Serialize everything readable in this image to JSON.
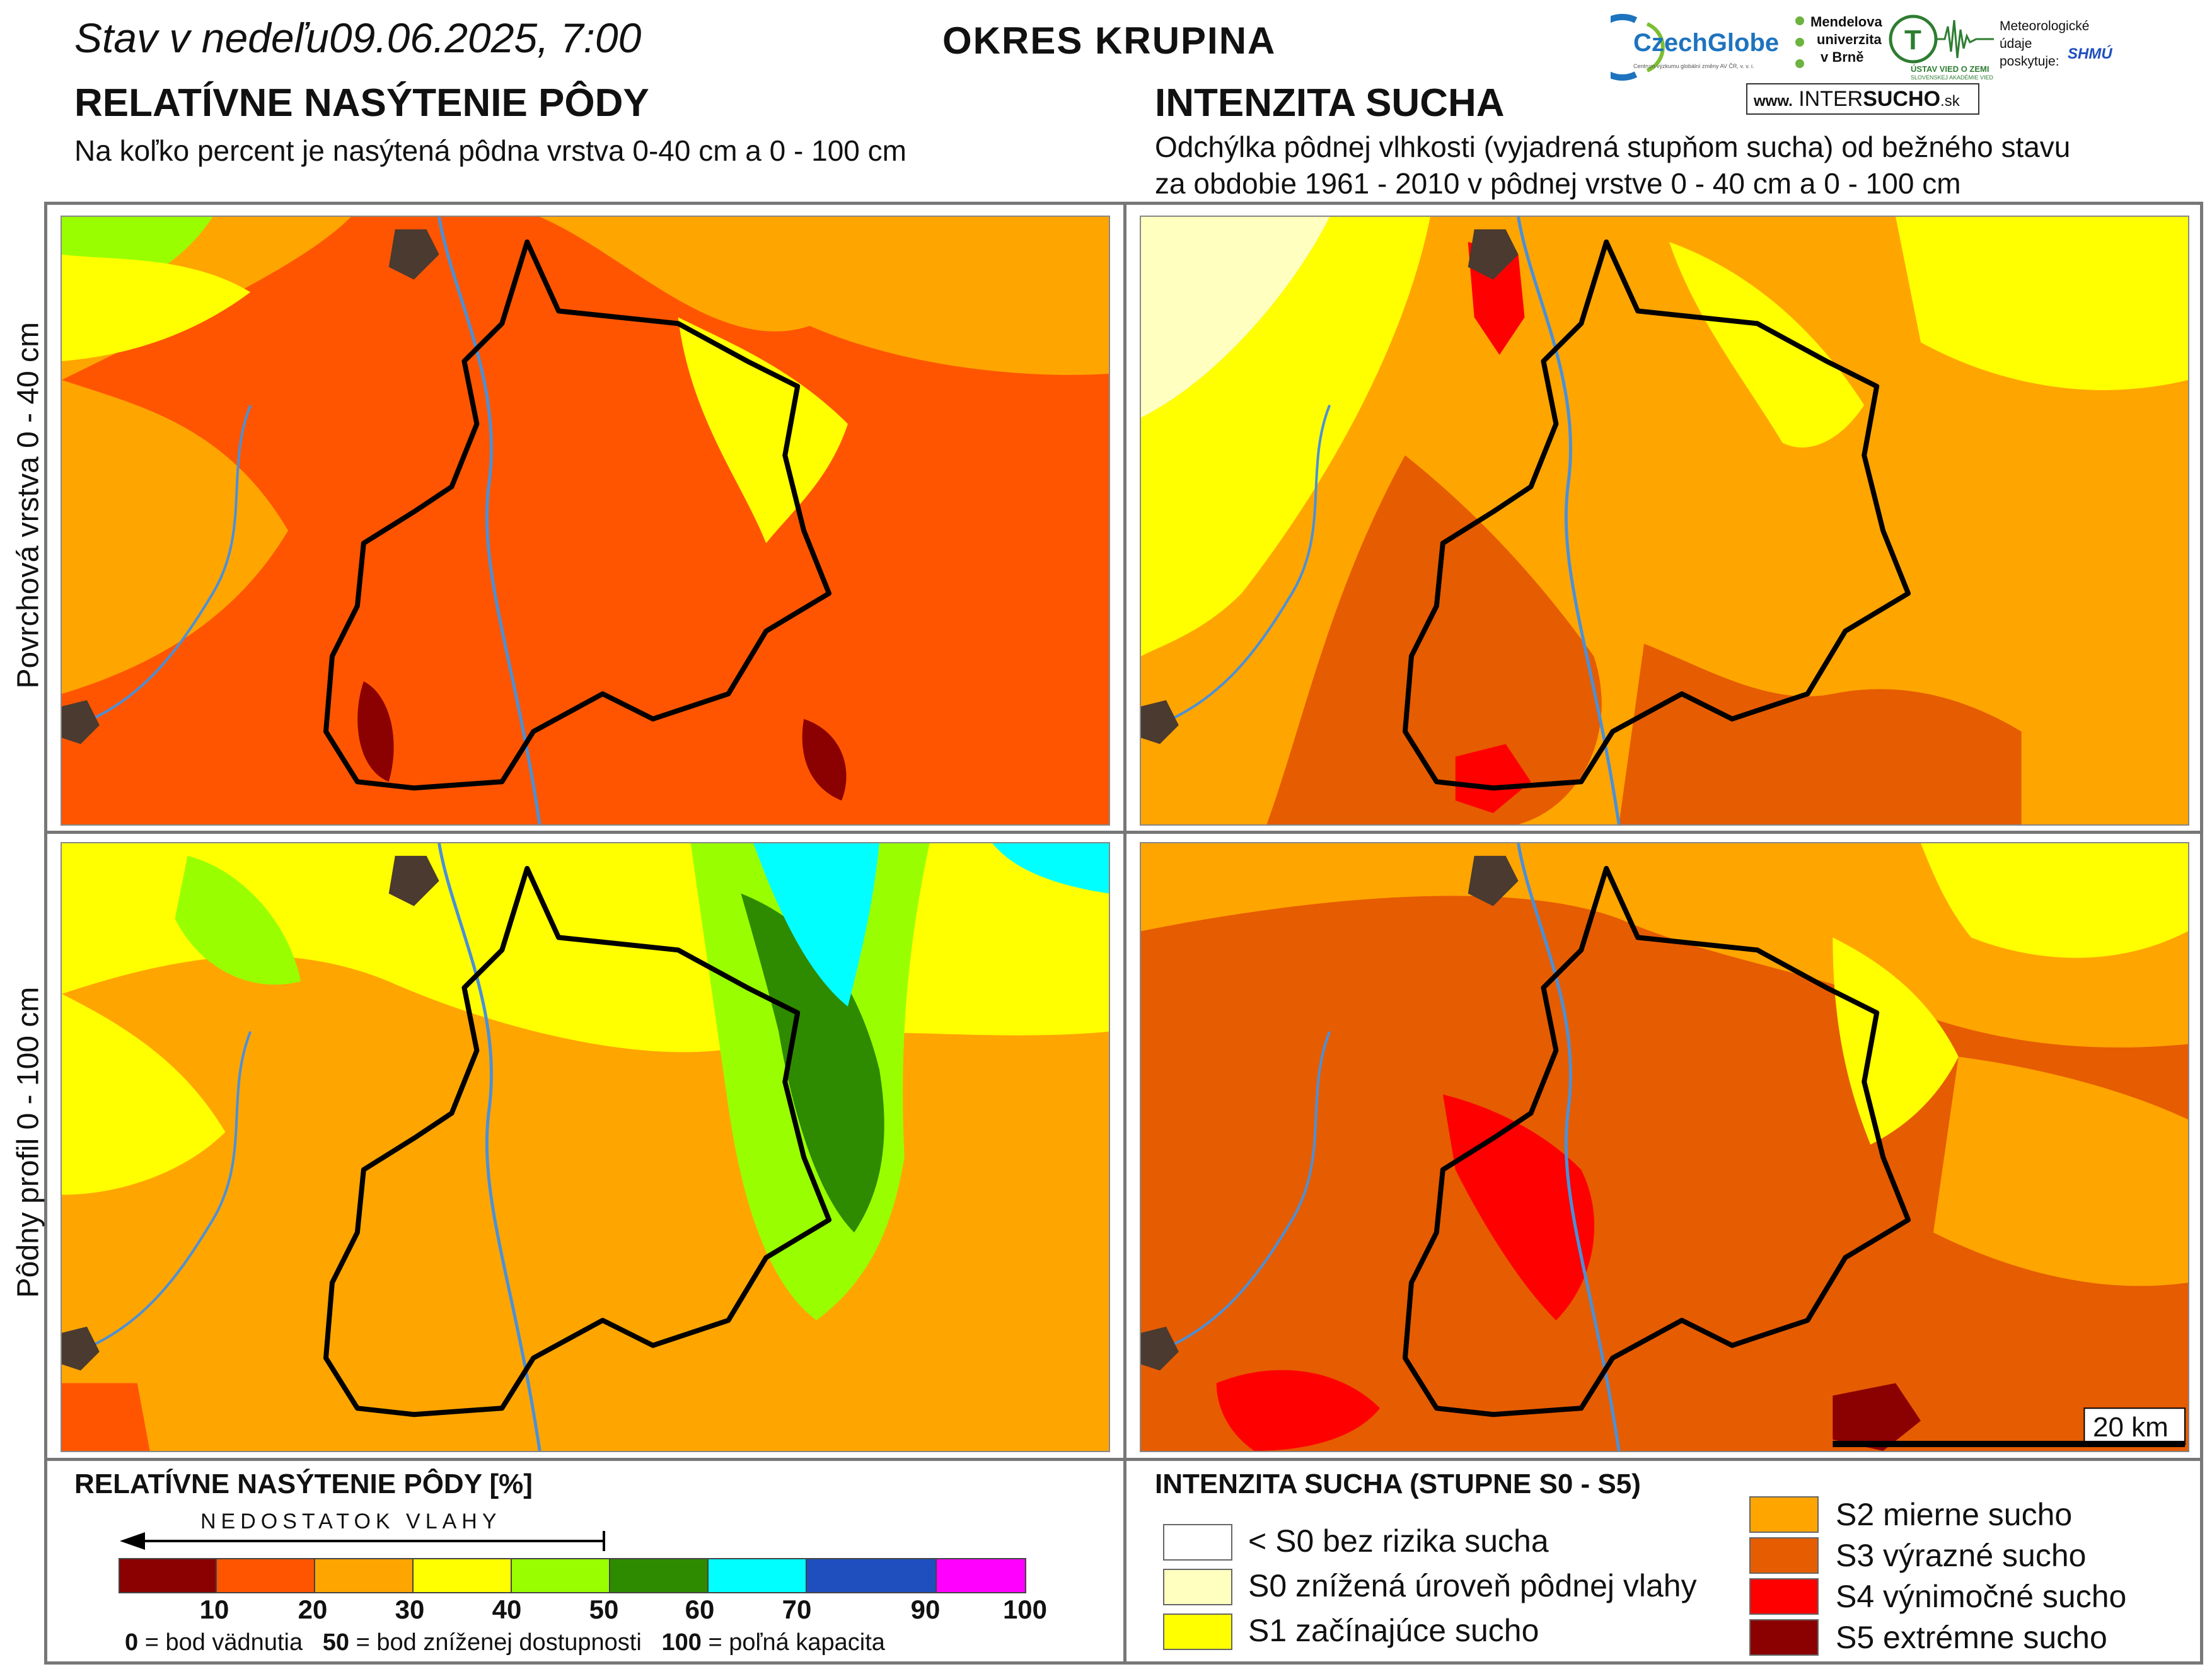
{
  "header": {
    "stav_prefix": "Stav v nedeľu",
    "datetime": "09.06.2025, 7:00",
    "district": "OKRES  KRUPINA"
  },
  "left": {
    "title": "RELATÍVNE NASÝTENIE PÔDY",
    "subtitle": "Na koľko percent je nasýtená pôdna vrstva 0-40 cm a 0 - 100 cm"
  },
  "right": {
    "title": "INTENZITA SUCHA",
    "subtitle_line1": "Odchýlka pôdnej vlhkosti (vyjadrená stupňom sucha) od bežného stavu",
    "subtitle_line2": "za obdobie 1961 - 2010 v pôdnej vrstve 0 - 40 cm a 0 - 100 cm"
  },
  "rows": {
    "top_label": "Povrchová vrstva 0 - 40 cm",
    "bottom_label": "Pôdny profil 0 - 100 cm"
  },
  "scalebar": "20 km",
  "logos": {
    "czechglobe": "CzechGlobe",
    "czechglobe_sub": "Centrum výzkumu globální změny AV ČR, v. v. i.",
    "mendelu_1": "Mendelova",
    "mendelu_2": "univerzita",
    "mendelu_3": "v Brně",
    "uvz": "ÚSTAV VIED O ZEMI",
    "uvz_sub": "SLOVENSKEJ AKADÉMIE VIED",
    "met_1": "Meteorologické",
    "met_2": "údaje",
    "met_3": "poskytuje:",
    "shmu": "SHMÚ",
    "intersucho_prefix": "www.",
    "intersucho_a": "INTER",
    "intersucho_b": "SUCHO",
    "intersucho_c": ".sk"
  },
  "legend_saturation": {
    "title": "RELATÍVNE NASÝTENIE PÔDY [%]",
    "arrow_label": "NEDOSTATOK VLAHY",
    "colors": [
      "#8B0000",
      "#FF5500",
      "#FFA500",
      "#FFFF00",
      "#99FF00",
      "#2E8B00",
      "#00FFFF",
      "#1F4FBF",
      "#FF00FF"
    ],
    "ticks": [
      "10",
      "20",
      "30",
      "40",
      "50",
      "60",
      "70",
      "90",
      "100"
    ],
    "note_v0": "0",
    "note_t0": "= bod vädnutia",
    "note_v50": "50",
    "note_t50": "= bod zníženej dostupnosti",
    "note_v100": "100",
    "note_t100": "= poľná kapacita"
  },
  "legend_drought": {
    "title": "INTENZITA SUCHA (STUPNE S0 - S5)",
    "items": [
      {
        "label": "< S0 bez rizika sucha",
        "color": "#FFFFFF"
      },
      {
        "label": "S0 znížená úroveň pôdnej vlahy",
        "color": "#FFFFC0"
      },
      {
        "label": "S1 začínajúce sucho",
        "color": "#FFFF00"
      },
      {
        "label": "S2 mierne sucho",
        "color": "#FFA500"
      },
      {
        "label": "S3 výrazné sucho",
        "color": "#E65C00"
      },
      {
        "label": "S4 výnimočné sucho",
        "color": "#FF0000"
      },
      {
        "label": "S5 extrémne sucho",
        "color": "#8B0000"
      }
    ]
  },
  "colors": {
    "sat_base_top": "#FF5500",
    "sat_base_bottom": "#FFA500",
    "drought_base_top": "#FFA500",
    "drought_base_bottom": "#E65C00",
    "border": "#000000",
    "river": "#4A90D9",
    "town": "#4A3A30"
  }
}
